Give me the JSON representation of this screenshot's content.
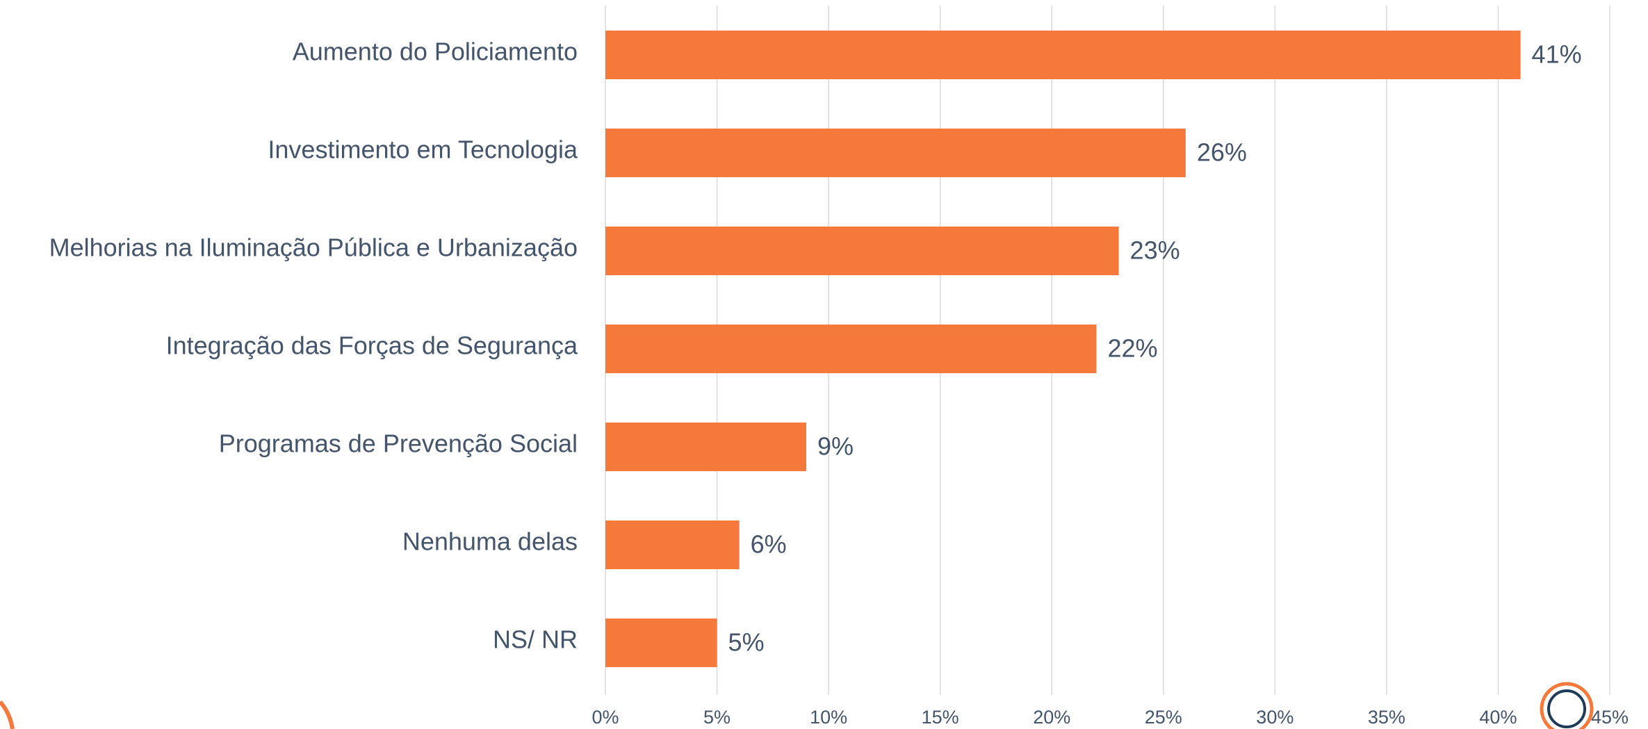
{
  "chart_data": {
    "type": "bar",
    "orientation": "horizontal",
    "categories": [
      "Aumento do Policiamento",
      "Investimento em Tecnologia",
      "Melhorias na Iluminação Pública e Urbanização",
      "Integração das Forças de Segurança",
      "Programas de Prevenção Social",
      "Nenhuma delas",
      "NS/ NR"
    ],
    "values": [
      41,
      26,
      23,
      22,
      9,
      6,
      5
    ],
    "value_labels": [
      "41%",
      "26%",
      "23%",
      "22%",
      "9%",
      "6%",
      "5%"
    ],
    "color": "#f4793b",
    "xlim": [
      0,
      45
    ],
    "xticks": [
      {
        "value": 0,
        "label": "0%"
      },
      {
        "value": 5,
        "label": "5%"
      },
      {
        "value": 10,
        "label": "10%"
      },
      {
        "value": 15,
        "label": "15%"
      },
      {
        "value": 20,
        "label": "20%"
      },
      {
        "value": 25,
        "label": "25%"
      },
      {
        "value": 30,
        "label": "30%"
      },
      {
        "value": 35,
        "label": "35%"
      },
      {
        "value": 40,
        "label": "40%"
      },
      {
        "value": 45,
        "label": "45%"
      }
    ],
    "grid": true
  }
}
